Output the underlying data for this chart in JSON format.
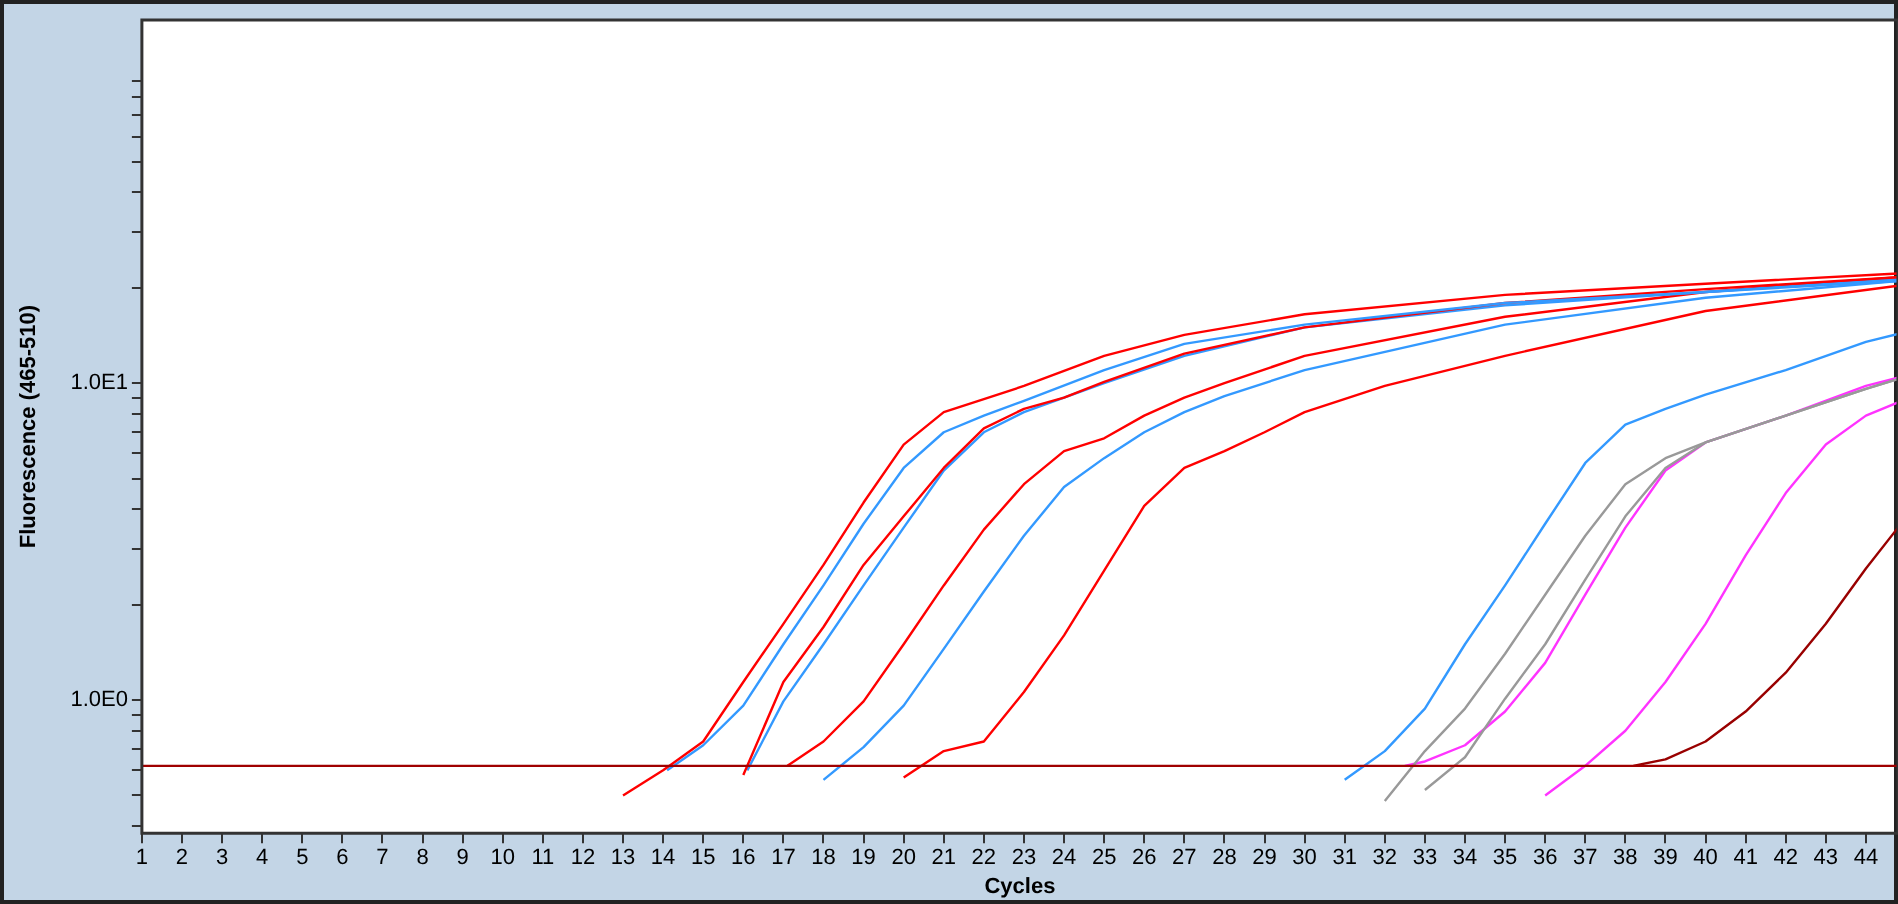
{
  "chart_data": {
    "type": "line",
    "xlabel": "Cycles",
    "ylabel": "Fluorescence (465-510)",
    "log": "y",
    "grid": false,
    "legend": false,
    "marker": "none",
    "line_style": "solid",
    "xlim": [
      1,
      44.8
    ],
    "xticks": [
      1,
      2,
      3,
      4,
      5,
      6,
      7,
      8,
      9,
      10,
      11,
      12,
      13,
      14,
      15,
      16,
      17,
      18,
      19,
      20,
      21,
      22,
      23,
      24,
      25,
      26,
      27,
      28,
      29,
      30,
      31,
      32,
      33,
      34,
      35,
      36,
      37,
      38,
      39,
      40,
      41,
      42,
      43,
      44
    ],
    "ylim": [
      0.38,
      140
    ],
    "yticks": [
      {
        "value": 0.4,
        "label": null
      },
      {
        "value": 0.5,
        "label": null
      },
      {
        "value": 0.6,
        "label": null
      },
      {
        "value": 0.7,
        "label": null
      },
      {
        "value": 0.8,
        "label": null
      },
      {
        "value": 0.9,
        "label": null
      },
      {
        "value": 1,
        "label": "1.0E0"
      },
      {
        "value": 2,
        "label": null
      },
      {
        "value": 3,
        "label": null
      },
      {
        "value": 4,
        "label": null
      },
      {
        "value": 5,
        "label": null
      },
      {
        "value": 6,
        "label": null
      },
      {
        "value": 7,
        "label": null
      },
      {
        "value": 8,
        "label": null
      },
      {
        "value": 9,
        "label": null
      },
      {
        "value": 10,
        "label": "1.0E1"
      },
      {
        "value": 20,
        "label": null
      },
      {
        "value": 30,
        "label": null
      },
      {
        "value": 40,
        "label": null
      },
      {
        "value": 50,
        "label": null
      },
      {
        "value": 60,
        "label": null
      },
      {
        "value": 70,
        "label": null
      },
      {
        "value": 80,
        "label": null
      },
      {
        "value": 90,
        "label": null
      }
    ],
    "ref_lines": [
      {
        "axis": "y",
        "value": 0.62,
        "label": null,
        "color": "#a00000"
      }
    ],
    "series": [
      {
        "color": "#ff0000",
        "x": [
          13,
          14,
          15,
          16,
          17,
          18,
          19,
          20,
          21,
          22,
          23,
          25,
          27,
          30,
          35,
          40,
          44.8
        ],
        "values": [
          0.5,
          0.6,
          0.74,
          1.14,
          1.74,
          2.67,
          4.2,
          6.4,
          8.1,
          8.9,
          9.8,
          12.2,
          14.2,
          16.5,
          19,
          20.6,
          22.2
        ]
      },
      {
        "color": "#3399ff",
        "x": [
          14.1,
          15,
          16,
          17,
          18,
          19,
          20,
          21,
          22,
          23,
          25,
          27,
          30,
          35,
          40,
          44.8
        ],
        "values": [
          0.6,
          0.72,
          0.96,
          1.5,
          2.3,
          3.6,
          5.4,
          7,
          7.9,
          8.8,
          11,
          13.3,
          15.3,
          17.9,
          19.4,
          21
        ]
      },
      {
        "color": "#ff0000",
        "x": [
          16,
          17,
          18,
          19,
          20,
          21,
          22,
          23,
          24,
          25,
          27,
          30,
          35,
          40,
          44.8
        ],
        "values": [
          0.58,
          1.14,
          1.7,
          2.67,
          3.8,
          5.4,
          7.2,
          8.3,
          9,
          10.1,
          12.4,
          15,
          17.9,
          19.8,
          21.6
        ]
      },
      {
        "color": "#3399ff",
        "x": [
          16.1,
          17,
          18,
          19,
          20,
          21,
          22,
          23,
          25,
          27,
          30,
          35,
          40,
          44.8
        ],
        "values": [
          0.6,
          0.99,
          1.5,
          2.3,
          3.5,
          5.3,
          7,
          8.1,
          10,
          12.2,
          15,
          17.6,
          19.4,
          21.3
        ]
      },
      {
        "color": "#ff0000",
        "x": [
          17.1,
          18,
          19,
          20,
          21,
          22,
          23,
          24,
          25,
          26,
          27,
          28,
          30,
          35,
          40,
          44.8
        ],
        "values": [
          0.62,
          0.74,
          0.99,
          1.5,
          2.3,
          3.45,
          4.8,
          6.1,
          6.7,
          7.9,
          9,
          10,
          12.2,
          16.2,
          19.4,
          21.6
        ]
      },
      {
        "color": "#3399ff",
        "x": [
          18,
          19,
          20,
          21,
          22,
          23,
          24,
          25,
          26,
          27,
          28,
          30,
          35,
          40,
          44.8
        ],
        "values": [
          0.56,
          0.71,
          0.96,
          1.45,
          2.2,
          3.3,
          4.7,
          5.8,
          7,
          8.1,
          9.1,
          11,
          15.3,
          18.6,
          21
        ]
      },
      {
        "color": "#ff0000",
        "x": [
          20,
          21,
          22,
          23,
          24,
          25,
          26,
          27,
          28,
          29,
          30,
          32,
          35,
          40,
          44.8
        ],
        "values": [
          0.57,
          0.69,
          0.74,
          1.06,
          1.6,
          2.56,
          4.1,
          5.4,
          6.1,
          7,
          8.1,
          9.8,
          12.2,
          16.9,
          20.3
        ]
      },
      {
        "color": "#3399ff",
        "x": [
          31,
          32,
          33,
          34,
          35,
          36,
          37,
          38,
          39,
          40,
          42,
          44,
          44.8
        ],
        "values": [
          0.56,
          0.69,
          0.94,
          1.5,
          2.3,
          3.6,
          5.6,
          7.4,
          8.3,
          9.2,
          11,
          13.5,
          14.3
        ]
      },
      {
        "color": "#999999",
        "x": [
          32,
          33,
          34,
          35,
          36,
          37,
          38,
          39,
          40,
          42,
          44,
          44.8
        ],
        "values": [
          0.48,
          0.69,
          0.94,
          1.4,
          2.15,
          3.3,
          4.8,
          5.8,
          6.5,
          7.9,
          9.6,
          10.3
        ]
      },
      {
        "color": "#999999",
        "x": [
          33,
          34,
          35,
          36,
          37,
          38,
          39,
          40,
          42,
          44,
          44.8
        ],
        "values": [
          0.52,
          0.66,
          1.01,
          1.5,
          2.4,
          3.8,
          5.4,
          6.5,
          7.9,
          9.6,
          10.3
        ]
      },
      {
        "color": "#ff33ff",
        "x": [
          32.5,
          33,
          34,
          35,
          36,
          37,
          38,
          39,
          40,
          42,
          44,
          44.8
        ],
        "values": [
          0.62,
          0.64,
          0.72,
          0.92,
          1.31,
          2.15,
          3.5,
          5.3,
          6.5,
          7.9,
          9.8,
          10.4
        ]
      },
      {
        "color": "#ff33ff",
        "x": [
          36,
          37,
          38,
          39,
          40,
          41,
          42,
          43,
          44,
          44.8
        ],
        "values": [
          0.5,
          0.62,
          0.8,
          1.14,
          1.74,
          2.86,
          4.5,
          6.4,
          7.9,
          8.7
        ]
      },
      {
        "color": "#990000",
        "x": [
          38.2,
          39,
          40,
          41,
          42,
          43,
          44,
          44.8
        ],
        "values": [
          0.62,
          0.65,
          0.74,
          0.92,
          1.22,
          1.74,
          2.6,
          3.5
        ]
      }
    ]
  }
}
